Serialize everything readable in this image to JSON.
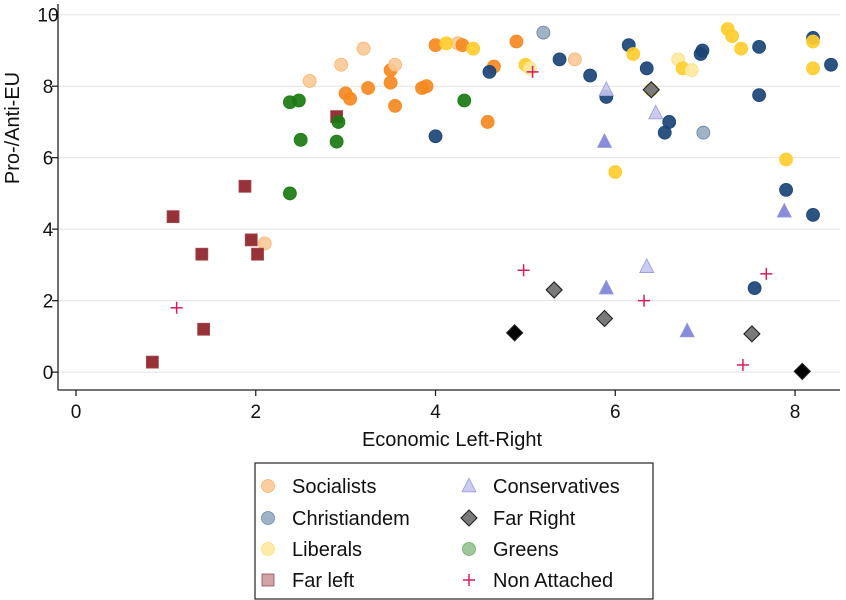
{
  "chart_data": {
    "type": "scatter",
    "title": "",
    "xlabel": "Economic Left-Right",
    "ylabel": "Pro-/Anti-EU",
    "xlim": [
      -0.2,
      8.5
    ],
    "ylim": [
      -0.5,
      10.3
    ],
    "xticks": [
      0,
      2,
      4,
      6,
      8
    ],
    "yticks": [
      0,
      2,
      4,
      6,
      8,
      10
    ],
    "grid": "horizontal",
    "legend_position": "bottom-center",
    "series": [
      {
        "name": "Socialists",
        "marker": "circle",
        "color": "#f5891f",
        "points": [
          {
            "x": 2.6,
            "y": 8.15,
            "light": true
          },
          {
            "x": 2.95,
            "y": 8.6,
            "light": true
          },
          {
            "x": 3.2,
            "y": 9.05,
            "light": true
          },
          {
            "x": 3.0,
            "y": 7.8
          },
          {
            "x": 3.05,
            "y": 7.65
          },
          {
            "x": 3.25,
            "y": 7.95
          },
          {
            "x": 3.5,
            "y": 8.45
          },
          {
            "x": 3.5,
            "y": 8.1
          },
          {
            "x": 3.55,
            "y": 8.6,
            "light": true
          },
          {
            "x": 3.55,
            "y": 7.45
          },
          {
            "x": 3.85,
            "y": 7.95
          },
          {
            "x": 3.9,
            "y": 8.0
          },
          {
            "x": 4.0,
            "y": 9.15
          },
          {
            "x": 4.25,
            "y": 9.2,
            "light": true
          },
          {
            "x": 4.3,
            "y": 9.15
          },
          {
            "x": 4.65,
            "y": 8.55
          },
          {
            "x": 4.58,
            "y": 7.0
          },
          {
            "x": 4.9,
            "y": 9.25
          },
          {
            "x": 5.55,
            "y": 8.75,
            "light": true
          },
          {
            "x": 2.1,
            "y": 3.6,
            "light": true
          }
        ]
      },
      {
        "name": "Christiandem",
        "marker": "circle",
        "color": "#1a4476",
        "points": [
          {
            "x": 4.0,
            "y": 6.6
          },
          {
            "x": 4.6,
            "y": 8.4
          },
          {
            "x": 5.2,
            "y": 9.5,
            "light": true
          },
          {
            "x": 5.38,
            "y": 8.75
          },
          {
            "x": 5.72,
            "y": 8.3
          },
          {
            "x": 5.9,
            "y": 7.7
          },
          {
            "x": 6.15,
            "y": 9.15
          },
          {
            "x": 6.35,
            "y": 8.5
          },
          {
            "x": 6.55,
            "y": 6.7
          },
          {
            "x": 6.6,
            "y": 7.0
          },
          {
            "x": 6.95,
            "y": 8.9
          },
          {
            "x": 6.97,
            "y": 9.0
          },
          {
            "x": 6.98,
            "y": 6.7,
            "light": true
          },
          {
            "x": 7.6,
            "y": 9.1
          },
          {
            "x": 7.6,
            "y": 7.75
          },
          {
            "x": 7.55,
            "y": 2.35
          },
          {
            "x": 7.9,
            "y": 5.1
          },
          {
            "x": 8.2,
            "y": 4.4
          },
          {
            "x": 8.2,
            "y": 9.35
          },
          {
            "x": 8.4,
            "y": 8.6
          }
        ]
      },
      {
        "name": "Liberals",
        "marker": "circle",
        "color": "#ffcd2e",
        "points": [
          {
            "x": 4.12,
            "y": 9.2
          },
          {
            "x": 4.42,
            "y": 9.05
          },
          {
            "x": 5.0,
            "y": 8.6
          },
          {
            "x": 5.05,
            "y": 8.5,
            "light": true
          },
          {
            "x": 6.0,
            "y": 5.6
          },
          {
            "x": 6.2,
            "y": 8.9
          },
          {
            "x": 6.4,
            "y": 7.9
          },
          {
            "x": 6.7,
            "y": 8.75,
            "light": true
          },
          {
            "x": 6.75,
            "y": 8.5
          },
          {
            "x": 6.85,
            "y": 8.45,
            "light": true
          },
          {
            "x": 7.25,
            "y": 9.6
          },
          {
            "x": 7.3,
            "y": 9.4
          },
          {
            "x": 7.4,
            "y": 9.05
          },
          {
            "x": 7.9,
            "y": 5.95
          },
          {
            "x": 8.2,
            "y": 9.25
          },
          {
            "x": 8.2,
            "y": 8.5
          }
        ]
      },
      {
        "name": "Far left",
        "marker": "square",
        "color": "#8c1c24",
        "points": [
          {
            "x": 0.85,
            "y": 0.28
          },
          {
            "x": 1.08,
            "y": 4.35
          },
          {
            "x": 1.4,
            "y": 3.3
          },
          {
            "x": 1.42,
            "y": 1.2
          },
          {
            "x": 1.88,
            "y": 5.2
          },
          {
            "x": 1.95,
            "y": 3.7
          },
          {
            "x": 2.02,
            "y": 3.3
          },
          {
            "x": 2.9,
            "y": 7.15
          }
        ]
      },
      {
        "name": "Conservatives",
        "marker": "triangle",
        "color": "#7b7fd6",
        "points": [
          {
            "x": 5.9,
            "y": 7.9,
            "light": true
          },
          {
            "x": 5.88,
            "y": 6.45
          },
          {
            "x": 5.9,
            "y": 2.35
          },
          {
            "x": 6.35,
            "y": 2.95,
            "light": true
          },
          {
            "x": 6.45,
            "y": 7.25,
            "light": true
          },
          {
            "x": 6.8,
            "y": 1.15
          },
          {
            "x": 7.88,
            "y": 4.5
          }
        ]
      },
      {
        "name": "Far Right",
        "marker": "diamond",
        "color": "#000000",
        "points": [
          {
            "x": 4.88,
            "y": 1.1
          },
          {
            "x": 5.32,
            "y": 2.3,
            "light": true
          },
          {
            "x": 5.88,
            "y": 1.5,
            "light": true
          },
          {
            "x": 6.4,
            "y": 7.9,
            "light": true
          },
          {
            "x": 7.52,
            "y": 1.07,
            "light": true
          },
          {
            "x": 8.08,
            "y": 0.02
          }
        ]
      },
      {
        "name": "Greens",
        "marker": "circle",
        "color": "#1a7a12",
        "points": [
          {
            "x": 2.38,
            "y": 7.55
          },
          {
            "x": 2.48,
            "y": 7.6
          },
          {
            "x": 2.5,
            "y": 6.5
          },
          {
            "x": 2.38,
            "y": 5.0
          },
          {
            "x": 2.9,
            "y": 6.45
          },
          {
            "x": 2.92,
            "y": 7.0
          },
          {
            "x": 4.32,
            "y": 7.6
          }
        ]
      },
      {
        "name": "Non Attached",
        "marker": "plus",
        "color": "#d81b60",
        "points": [
          {
            "x": 1.12,
            "y": 1.8
          },
          {
            "x": 4.98,
            "y": 2.85
          },
          {
            "x": 5.08,
            "y": 8.4
          },
          {
            "x": 6.32,
            "y": 2.0
          },
          {
            "x": 7.42,
            "y": 0.2
          },
          {
            "x": 7.68,
            "y": 2.75
          }
        ]
      }
    ]
  },
  "legend": {
    "items": [
      {
        "label": "Socialists",
        "series": 0
      },
      {
        "label": "Conservatives",
        "series": 4
      },
      {
        "label": "Christiandem",
        "series": 1
      },
      {
        "label": "Far Right",
        "series": 5
      },
      {
        "label": "Liberals",
        "series": 2
      },
      {
        "label": "Greens",
        "series": 6
      },
      {
        "label": "Far left",
        "series": 3
      },
      {
        "label": "Non Attached",
        "series": 7
      }
    ]
  }
}
